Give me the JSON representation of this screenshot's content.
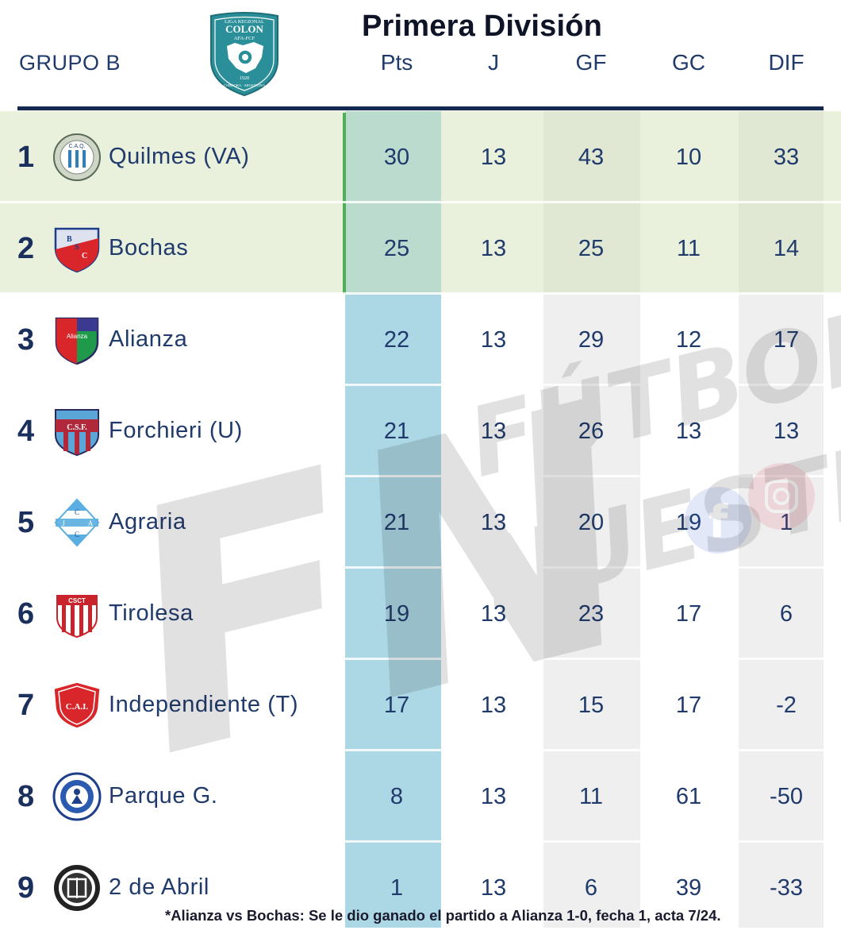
{
  "header": {
    "title": "Primera División",
    "group": "GRUPO B",
    "columns": [
      "Pts",
      "J",
      "GF",
      "GC",
      "DIF"
    ]
  },
  "league_logo": {
    "text_top": "LIGA REGIONAL",
    "text_main": "COLON",
    "text_sub": "AFA-FCF",
    "year": "1928",
    "text_bottom": "CORDOBA · ARGENTINA"
  },
  "rows": [
    {
      "pos": "1",
      "team": "Quilmes (VA)",
      "pts": "30",
      "j": "13",
      "gf": "43",
      "gc": "10",
      "dif": "33",
      "crest": "quilmes-crest"
    },
    {
      "pos": "2",
      "team": "Bochas",
      "pts": "25",
      "j": "13",
      "gf": "25",
      "gc": "11",
      "dif": "14",
      "crest": "bochas-crest"
    },
    {
      "pos": "3",
      "team": "Alianza",
      "pts": "22",
      "j": "13",
      "gf": "29",
      "gc": "12",
      "dif": "17",
      "crest": "alianza-crest"
    },
    {
      "pos": "4",
      "team": "Forchieri (U)",
      "pts": "21",
      "j": "13",
      "gf": "26",
      "gc": "13",
      "dif": "13",
      "crest": "forchieri-crest"
    },
    {
      "pos": "5",
      "team": "Agraria",
      "pts": "21",
      "j": "13",
      "gf": "20",
      "gc": "19",
      "dif": "1",
      "crest": "agraria-crest"
    },
    {
      "pos": "6",
      "team": "Tirolesa",
      "pts": "19",
      "j": "13",
      "gf": "23",
      "gc": "17",
      "dif": "6",
      "crest": "tirolesa-crest"
    },
    {
      "pos": "7",
      "team": "Independiente (T)",
      "pts": "17",
      "j": "13",
      "gf": "15",
      "gc": "17",
      "dif": "-2",
      "crest": "independiente-crest"
    },
    {
      "pos": "8",
      "team": "Parque G.",
      "pts": "8",
      "j": "13",
      "gf": "11",
      "gc": "61",
      "dif": "-50",
      "crest": "parque-crest"
    },
    {
      "pos": "9",
      "team": "2 de Abril",
      "pts": "1",
      "j": "13",
      "gf": "6",
      "gc": "39",
      "dif": "-33",
      "crest": "dos-de-abril-crest"
    }
  ],
  "crest_text": {
    "quilmes": "C.A.Q.",
    "bochas": [
      "B",
      "S",
      "C"
    ],
    "alianza": "Alianza",
    "forchieri": "C.S.F.",
    "agraria": [
      "C",
      "J",
      "A",
      "C"
    ],
    "tirolesa": "CSCT",
    "independiente": "C.A.I."
  },
  "watermark": {
    "initials": "FN",
    "line1": "FÚTBOL",
    "line2": "NUESTRO"
  },
  "footnote": "*Alianza vs Bochas: Se le dio ganado el partido a Alianza 1-0, fecha 1, acta 7/24.",
  "colors": {
    "navy": "#13294f",
    "text": "#1f3a6b",
    "pts_band": "#acd7e5",
    "qualified": "#cee0b4",
    "qualified_bar": "#4fae58",
    "alt_band": "#efefef"
  }
}
